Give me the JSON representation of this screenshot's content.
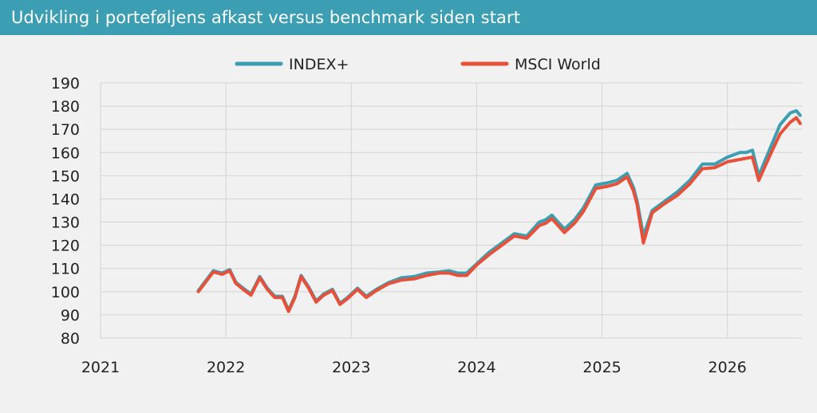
{
  "header": {
    "title": "Udvikling i porteføljens afkast versus benchmark siden start"
  },
  "colors": {
    "header_bg": "#3b9eb2",
    "series_index": "#3b9eb2",
    "series_msci": "#e8503a",
    "grid": "#d4d4d4"
  },
  "chart_data": {
    "type": "line",
    "title": "Udvikling i porteføljens afkast versus benchmark siden start",
    "xlabel": "",
    "ylabel": "",
    "xlim": [
      2021,
      2026.6
    ],
    "ylim": [
      80,
      190
    ],
    "x_ticks": [
      "2021",
      "2022",
      "2023",
      "2024",
      "2025",
      "2026"
    ],
    "y_ticks": [
      "80",
      "90",
      "100",
      "110",
      "120",
      "130",
      "140",
      "150",
      "160",
      "170",
      "180",
      "190"
    ],
    "grid": true,
    "legend": "top-center",
    "series": [
      {
        "name": "INDEX+",
        "color": "#3b9eb2",
        "x": [
          2021.78,
          2021.85,
          2021.9,
          2021.97,
          2022.03,
          2022.08,
          2022.15,
          2022.2,
          2022.27,
          2022.33,
          2022.39,
          2022.45,
          2022.5,
          2022.55,
          2022.6,
          2022.66,
          2022.72,
          2022.78,
          2022.85,
          2022.91,
          2022.97,
          2023.05,
          2023.12,
          2023.2,
          2023.3,
          2023.4,
          2023.5,
          2023.6,
          2023.7,
          2023.78,
          2023.85,
          2023.92,
          2024.0,
          2024.1,
          2024.2,
          2024.3,
          2024.4,
          2024.5,
          2024.55,
          2024.6,
          2024.7,
          2024.78,
          2024.85,
          2024.95,
          2025.05,
          2025.12,
          2025.2,
          2025.25,
          2025.28,
          2025.33,
          2025.4,
          2025.5,
          2025.6,
          2025.7,
          2025.8,
          2025.9,
          2026.0,
          2026.1,
          2026.15,
          2026.2,
          2026.25,
          2026.35,
          2026.42,
          2026.5,
          2026.55,
          2026.58
        ],
        "values": [
          100.5,
          105.5,
          109,
          108,
          109.5,
          104,
          101,
          99,
          106.5,
          101.5,
          98,
          98,
          92,
          98,
          107,
          102,
          96,
          99,
          101,
          95,
          97.5,
          101.5,
          98,
          101,
          104,
          106,
          106.5,
          108,
          108.5,
          109,
          108,
          108,
          112,
          117,
          121,
          125,
          124,
          130,
          131,
          133,
          127,
          131,
          136,
          146,
          147,
          148,
          151,
          145,
          139,
          124,
          135,
          139,
          143,
          148,
          155,
          155,
          158,
          160,
          160,
          161,
          150,
          163,
          172,
          177,
          178,
          176
        ]
      },
      {
        "name": "MSCI World",
        "color": "#e8503a",
        "x": [
          2021.78,
          2021.85,
          2021.9,
          2021.97,
          2022.03,
          2022.08,
          2022.15,
          2022.2,
          2022.27,
          2022.33,
          2022.39,
          2022.45,
          2022.5,
          2022.55,
          2022.6,
          2022.66,
          2022.72,
          2022.78,
          2022.85,
          2022.91,
          2022.97,
          2023.05,
          2023.12,
          2023.2,
          2023.3,
          2023.4,
          2023.5,
          2023.6,
          2023.7,
          2023.78,
          2023.85,
          2023.92,
          2024.0,
          2024.1,
          2024.2,
          2024.3,
          2024.4,
          2024.5,
          2024.55,
          2024.6,
          2024.7,
          2024.78,
          2024.85,
          2024.95,
          2025.05,
          2025.12,
          2025.2,
          2025.25,
          2025.28,
          2025.33,
          2025.4,
          2025.5,
          2025.6,
          2025.7,
          2025.8,
          2025.9,
          2026.0,
          2026.1,
          2026.15,
          2026.2,
          2026.25,
          2026.35,
          2026.42,
          2026.5,
          2026.55,
          2026.58
        ],
        "values": [
          100,
          105,
          108.5,
          107.5,
          109,
          103.5,
          100.5,
          98.5,
          106,
          101,
          97.5,
          97.5,
          91.5,
          97.5,
          106.5,
          101.5,
          95.5,
          98.5,
          100.5,
          94.5,
          97,
          101,
          97.5,
          100.5,
          103.5,
          105,
          105.5,
          107,
          108,
          108,
          107,
          107,
          111.5,
          116,
          120,
          124,
          123,
          128.5,
          129.5,
          131.5,
          125.5,
          129.5,
          134.5,
          144.5,
          145.5,
          146.5,
          149.5,
          143.5,
          137.5,
          121,
          134,
          138,
          141.5,
          146.5,
          153,
          153.5,
          156,
          157,
          157.5,
          158,
          148,
          160,
          168,
          173,
          175,
          172.5
        ]
      }
    ]
  }
}
